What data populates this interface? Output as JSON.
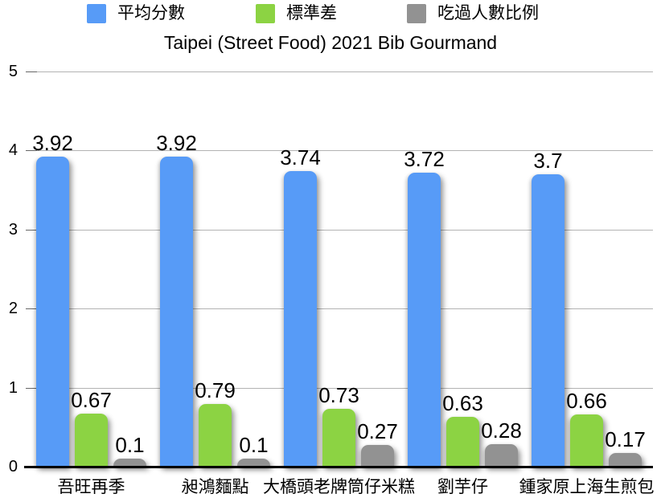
{
  "page": {
    "background_color": "#ffffff"
  },
  "chart_data": {
    "type": "bar",
    "title": "Taipei (Street Food) 2021 Bib Gourmand",
    "categories": [
      "吾旺再季",
      "昶鴻麵點",
      "大橋頭老牌筒仔米糕",
      "劉芋仔",
      "鍾家原上海生煎包"
    ],
    "series": [
      {
        "name": "平均分數",
        "color": "#579bf7",
        "values": [
          3.92,
          3.92,
          3.74,
          3.72,
          3.7
        ]
      },
      {
        "name": "標準差",
        "color": "#8cd343",
        "values": [
          0.67,
          0.79,
          0.73,
          0.63,
          0.66
        ]
      },
      {
        "name": "吃過人數比例",
        "color": "#929292",
        "values": [
          0.1,
          0.1,
          0.27,
          0.28,
          0.17
        ]
      }
    ],
    "xlabel": "",
    "ylabel": "",
    "y_ticks": [
      0,
      1,
      2,
      3,
      4,
      5
    ],
    "ylim": [
      0,
      5
    ],
    "grid": true,
    "legend_position": "top",
    "gridline_color": "#b3b3b3",
    "axis_color": "#000000",
    "label_color": "#000000"
  }
}
